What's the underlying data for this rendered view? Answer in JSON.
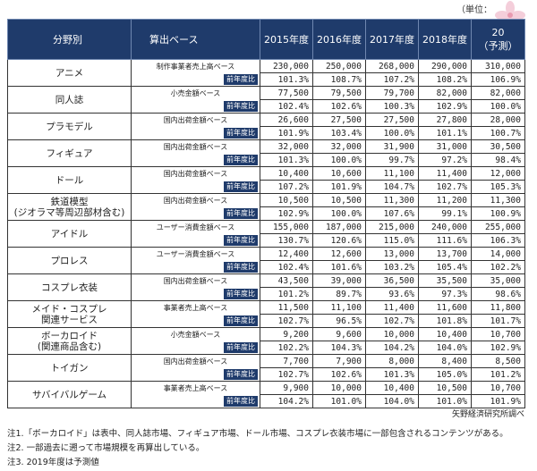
{
  "unit_label": "（単位：",
  "header": {
    "field": "分野別",
    "basis": "算出ベース",
    "years": [
      "2015年度",
      "2016年度",
      "2017年度",
      "2018年度",
      "20",
      "（予測）"
    ]
  },
  "yoy_label": "前年度比",
  "rows": [
    {
      "field": "アニメ",
      "basis": "制作事業者売上高ベース",
      "values": [
        "230,000",
        "250,000",
        "268,000",
        "290,000",
        "310,000"
      ],
      "yoy": [
        "101.3%",
        "108.7%",
        "107.2%",
        "108.2%",
        "106.9%"
      ]
    },
    {
      "field": "同人誌",
      "basis": "小売金額ベース",
      "values": [
        "77,500",
        "79,500",
        "79,700",
        "82,000",
        "82,000"
      ],
      "yoy": [
        "102.4%",
        "102.6%",
        "100.3%",
        "102.9%",
        "100.0%"
      ]
    },
    {
      "field": "プラモデル",
      "basis": "国内出荷金額ベース",
      "values": [
        "26,600",
        "27,500",
        "27,500",
        "27,800",
        "28,000"
      ],
      "yoy": [
        "101.9%",
        "103.4%",
        "100.0%",
        "101.1%",
        "100.7%"
      ]
    },
    {
      "field": "フィギュア",
      "basis": "国内出荷金額ベース",
      "values": [
        "32,000",
        "32,000",
        "31,900",
        "31,000",
        "30,500"
      ],
      "yoy": [
        "101.3%",
        "100.0%",
        "99.7%",
        "97.2%",
        "98.4%"
      ]
    },
    {
      "field": "ドール",
      "basis": "国内出荷金額ベース",
      "values": [
        "10,400",
        "10,600",
        "11,100",
        "11,400",
        "12,000"
      ],
      "yoy": [
        "107.2%",
        "101.9%",
        "104.7%",
        "102.7%",
        "105.3%"
      ]
    },
    {
      "field": "鉄道模型",
      "field2": "(ジオラマ等周辺部材含む)",
      "basis": "国内出荷金額ベース",
      "values": [
        "10,500",
        "10,500",
        "11,300",
        "11,200",
        "11,300"
      ],
      "yoy": [
        "102.9%",
        "100.0%",
        "107.6%",
        "99.1%",
        "100.9%"
      ]
    },
    {
      "field": "アイドル",
      "basis": "ユーザー消費金額ベース",
      "values": [
        "155,000",
        "187,000",
        "215,000",
        "240,000",
        "255,000"
      ],
      "yoy": [
        "130.7%",
        "120.6%",
        "115.0%",
        "111.6%",
        "106.3%"
      ]
    },
    {
      "field": "プロレス",
      "basis": "ユーザー消費金額ベース",
      "values": [
        "12,400",
        "12,600",
        "13,000",
        "13,700",
        "14,000"
      ],
      "yoy": [
        "102.4%",
        "101.6%",
        "103.2%",
        "105.4%",
        "102.2%"
      ]
    },
    {
      "field": "コスプレ衣装",
      "basis": "国内出荷金額ベース",
      "values": [
        "43,500",
        "39,000",
        "36,500",
        "35,500",
        "35,000"
      ],
      "yoy": [
        "101.2%",
        "89.7%",
        "93.6%",
        "97.3%",
        "98.6%"
      ]
    },
    {
      "field": "メイド・コスプレ",
      "field2": "関連サービス",
      "basis": "事業者売上高ベース",
      "values": [
        "11,500",
        "11,100",
        "11,400",
        "11,600",
        "11,800"
      ],
      "yoy": [
        "102.7%",
        "96.5%",
        "102.7%",
        "101.8%",
        "101.7%"
      ]
    },
    {
      "field": "ボーカロイド",
      "field2": "(関連商品含む)",
      "basis": "小売金額ベース",
      "values": [
        "9,200",
        "9,600",
        "10,000",
        "10,400",
        "10,700"
      ],
      "yoy": [
        "102.2%",
        "104.3%",
        "104.2%",
        "104.0%",
        "102.9%"
      ]
    },
    {
      "field": "トイガン",
      "basis": "国内出荷金額ベース",
      "values": [
        "7,700",
        "7,900",
        "8,000",
        "8,400",
        "8,500"
      ],
      "yoy": [
        "102.7%",
        "102.6%",
        "101.3%",
        "105.0%",
        "101.2%"
      ]
    },
    {
      "field": "サバイバルゲーム",
      "basis": "事業者売上高ベース",
      "values": [
        "9,900",
        "10,000",
        "10,400",
        "10,500",
        "10,700"
      ],
      "yoy": [
        "104.2%",
        "101.0%",
        "104.0%",
        "101.0%",
        "101.9%"
      ]
    }
  ],
  "source": "矢野経済研究所調べ",
  "notes": [
    "注1.「ボーカロイド」は表中、同人誌市場、フィギュア市場、ドール市場、コスプレ衣装市場に一部包含されるコンテンツがある。",
    "注2. 一部過去に遡って市場規模を再算出している。",
    "注3. 2019年度は予測値"
  ]
}
